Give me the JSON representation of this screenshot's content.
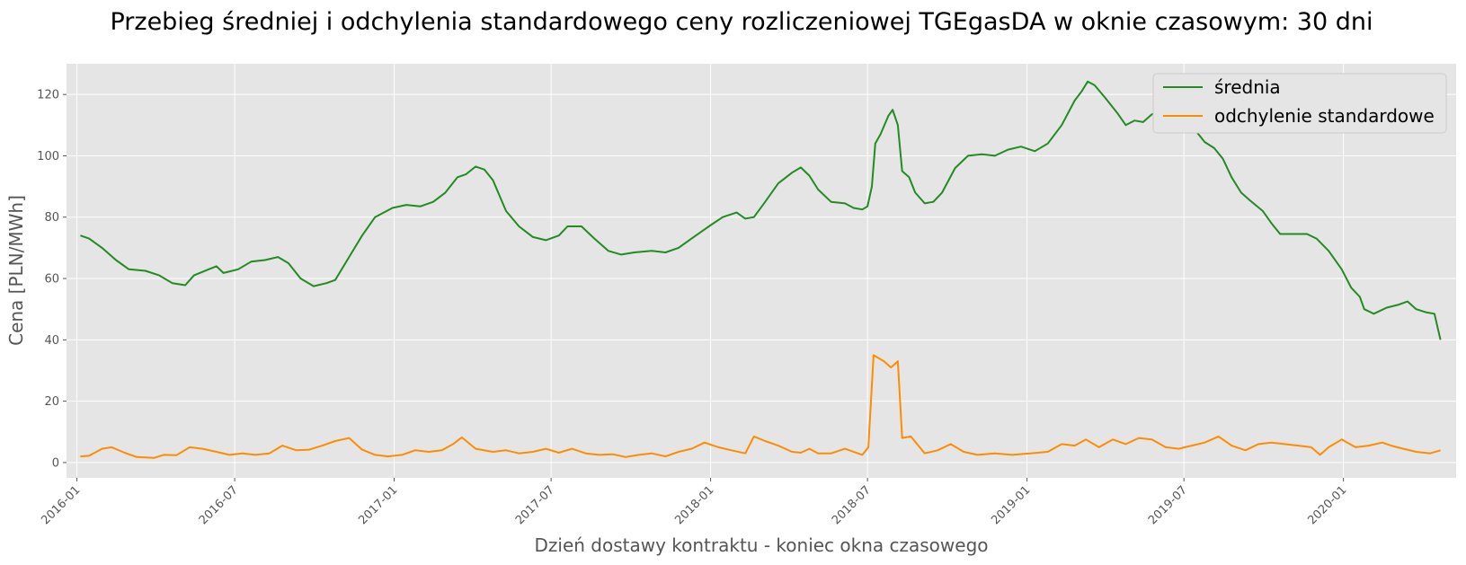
{
  "chart_data": {
    "type": "line",
    "title": "Przebieg średniej i odchylenia standardowego ceny rozliczeniowej TGEgasDA w oknie czasowym: 30 dni",
    "xlabel": "Dzień dostawy kontraktu - koniec okna czasowego",
    "ylabel": "Cena [PLN/MWh]",
    "xlim": [
      "2015-12-20",
      "2020-05-10"
    ],
    "ylim": [
      -5,
      130
    ],
    "x_ticks": [
      "2016-01",
      "2016-07",
      "2017-01",
      "2017-07",
      "2018-01",
      "2018-07",
      "2019-01",
      "2019-07",
      "2020-01"
    ],
    "y_ticks": [
      0,
      20,
      40,
      60,
      80,
      100,
      120
    ],
    "grid": true,
    "legend": "top-right",
    "series": [
      {
        "name": "średnia",
        "color": "#228b22",
        "points": [
          [
            "2016-01-05",
            74
          ],
          [
            "2016-01-15",
            73
          ],
          [
            "2016-01-30",
            70
          ],
          [
            "2016-02-15",
            66
          ],
          [
            "2016-03-01",
            63
          ],
          [
            "2016-03-20",
            62.5
          ],
          [
            "2016-04-05",
            61
          ],
          [
            "2016-04-20",
            58.5
          ],
          [
            "2016-05-05",
            57.8
          ],
          [
            "2016-05-15",
            61
          ],
          [
            "2016-06-01",
            63
          ],
          [
            "2016-06-10",
            64
          ],
          [
            "2016-06-18",
            61.8
          ],
          [
            "2016-07-05",
            63
          ],
          [
            "2016-07-20",
            65.5
          ],
          [
            "2016-08-05",
            66
          ],
          [
            "2016-08-20",
            67
          ],
          [
            "2016-09-01",
            65
          ],
          [
            "2016-09-15",
            60
          ],
          [
            "2016-09-30",
            57.5
          ],
          [
            "2016-10-15",
            58.5
          ],
          [
            "2016-10-25",
            59.5
          ],
          [
            "2016-11-10",
            67
          ],
          [
            "2016-11-25",
            74
          ],
          [
            "2016-12-10",
            80
          ],
          [
            "2016-12-30",
            83
          ],
          [
            "2017-01-15",
            84
          ],
          [
            "2017-01-31",
            83.5
          ],
          [
            "2017-02-15",
            85
          ],
          [
            "2017-03-01",
            88
          ],
          [
            "2017-03-15",
            93
          ],
          [
            "2017-03-25",
            94
          ],
          [
            "2017-04-05",
            96.5
          ],
          [
            "2017-04-15",
            95.5
          ],
          [
            "2017-04-25",
            92
          ],
          [
            "2017-05-10",
            82
          ],
          [
            "2017-05-25",
            77
          ],
          [
            "2017-06-10",
            73.5
          ],
          [
            "2017-06-25",
            72.5
          ],
          [
            "2017-07-10",
            74
          ],
          [
            "2017-07-20",
            77
          ],
          [
            "2017-08-05",
            77
          ],
          [
            "2017-08-20",
            73
          ],
          [
            "2017-09-05",
            69
          ],
          [
            "2017-09-20",
            67.8
          ],
          [
            "2017-10-05",
            68.5
          ],
          [
            "2017-10-25",
            69
          ],
          [
            "2017-11-10",
            68.5
          ],
          [
            "2017-11-25",
            70
          ],
          [
            "2017-12-10",
            73
          ],
          [
            "2017-12-30",
            77
          ],
          [
            "2018-01-15",
            80
          ],
          [
            "2018-01-31",
            81.5
          ],
          [
            "2018-02-10",
            79.5
          ],
          [
            "2018-02-20",
            80
          ],
          [
            "2018-03-05",
            85
          ],
          [
            "2018-03-20",
            91
          ],
          [
            "2018-04-05",
            94.5
          ],
          [
            "2018-04-15",
            96.2
          ],
          [
            "2018-04-25",
            93.5
          ],
          [
            "2018-05-05",
            89
          ],
          [
            "2018-05-20",
            85
          ],
          [
            "2018-06-05",
            84.5
          ],
          [
            "2018-06-15",
            83
          ],
          [
            "2018-06-25",
            82.5
          ],
          [
            "2018-07-01",
            83.5
          ],
          [
            "2018-07-06",
            90
          ],
          [
            "2018-07-10",
            104
          ],
          [
            "2018-07-16",
            107
          ],
          [
            "2018-07-25",
            113
          ],
          [
            "2018-07-30",
            115
          ],
          [
            "2018-08-05",
            110
          ],
          [
            "2018-08-10",
            95
          ],
          [
            "2018-08-18",
            93
          ],
          [
            "2018-08-25",
            88
          ],
          [
            "2018-09-05",
            84.5
          ],
          [
            "2018-09-15",
            85
          ],
          [
            "2018-09-25",
            88
          ],
          [
            "2018-10-10",
            96
          ],
          [
            "2018-10-25",
            100
          ],
          [
            "2018-11-10",
            100.5
          ],
          [
            "2018-11-25",
            100
          ],
          [
            "2018-12-10",
            102
          ],
          [
            "2018-12-25",
            103
          ],
          [
            "2019-01-10",
            101.5
          ],
          [
            "2019-01-25",
            104
          ],
          [
            "2019-02-10",
            110
          ],
          [
            "2019-02-25",
            118
          ],
          [
            "2019-03-05",
            121
          ],
          [
            "2019-03-12",
            124.2
          ],
          [
            "2019-03-20",
            123
          ],
          [
            "2019-04-01",
            119
          ],
          [
            "2019-04-15",
            114
          ],
          [
            "2019-04-25",
            110
          ],
          [
            "2019-05-05",
            111.5
          ],
          [
            "2019-05-15",
            111
          ],
          [
            "2019-05-25",
            113.5
          ],
          [
            "2019-06-05",
            114.5
          ],
          [
            "2019-06-15",
            113.5
          ],
          [
            "2019-06-25",
            112
          ],
          [
            "2019-07-05",
            109
          ],
          [
            "2019-07-15",
            108
          ],
          [
            "2019-07-25",
            104.5
          ],
          [
            "2019-08-05",
            102.5
          ],
          [
            "2019-08-15",
            99
          ],
          [
            "2019-08-25",
            93
          ],
          [
            "2019-09-05",
            88
          ],
          [
            "2019-09-15",
            85.5
          ],
          [
            "2019-09-30",
            82
          ],
          [
            "2019-10-10",
            78
          ],
          [
            "2019-10-20",
            74.5
          ],
          [
            "2019-11-05",
            74.5
          ],
          [
            "2019-11-20",
            74.5
          ],
          [
            "2019-12-01",
            73
          ],
          [
            "2019-12-15",
            69
          ],
          [
            "2019-12-30",
            63
          ],
          [
            "2020-01-10",
            57
          ],
          [
            "2020-01-20",
            54
          ],
          [
            "2020-01-25",
            50
          ],
          [
            "2020-02-05",
            48.5
          ],
          [
            "2020-02-20",
            50.5
          ],
          [
            "2020-03-05",
            51.5
          ],
          [
            "2020-03-15",
            52.5
          ],
          [
            "2020-03-25",
            50
          ],
          [
            "2020-04-05",
            49
          ],
          [
            "2020-04-15",
            48.5
          ],
          [
            "2020-04-22",
            40
          ]
        ]
      },
      {
        "name": "odchylenie standardowe",
        "color": "#ff8c00",
        "points": [
          [
            "2016-01-05",
            2
          ],
          [
            "2016-01-15",
            2.2
          ],
          [
            "2016-01-30",
            4.5
          ],
          [
            "2016-02-10",
            5
          ],
          [
            "2016-02-25",
            3.2
          ],
          [
            "2016-03-10",
            1.8
          ],
          [
            "2016-03-30",
            1.5
          ],
          [
            "2016-04-10",
            2.5
          ],
          [
            "2016-04-25",
            2.4
          ],
          [
            "2016-05-10",
            5
          ],
          [
            "2016-05-25",
            4.5
          ],
          [
            "2016-06-10",
            3.5
          ],
          [
            "2016-06-25",
            2.5
          ],
          [
            "2016-07-10",
            3
          ],
          [
            "2016-07-25",
            2.5
          ],
          [
            "2016-08-10",
            3
          ],
          [
            "2016-08-25",
            5.5
          ],
          [
            "2016-09-10",
            4
          ],
          [
            "2016-09-25",
            4.2
          ],
          [
            "2016-10-10",
            5.5
          ],
          [
            "2016-10-25",
            7
          ],
          [
            "2016-11-10",
            8
          ],
          [
            "2016-11-25",
            4.2
          ],
          [
            "2016-12-10",
            2.5
          ],
          [
            "2016-12-25",
            2
          ],
          [
            "2017-01-10",
            2.5
          ],
          [
            "2017-01-25",
            4
          ],
          [
            "2017-02-10",
            3.5
          ],
          [
            "2017-02-25",
            4
          ],
          [
            "2017-03-10",
            6
          ],
          [
            "2017-03-20",
            8.2
          ],
          [
            "2017-04-05",
            4.5
          ],
          [
            "2017-04-25",
            3.5
          ],
          [
            "2017-05-10",
            4
          ],
          [
            "2017-05-25",
            3
          ],
          [
            "2017-06-10",
            3.5
          ],
          [
            "2017-06-25",
            4.5
          ],
          [
            "2017-07-10",
            3.2
          ],
          [
            "2017-07-25",
            4.5
          ],
          [
            "2017-08-10",
            3
          ],
          [
            "2017-08-25",
            2.5
          ],
          [
            "2017-09-10",
            2.7
          ],
          [
            "2017-09-25",
            1.8
          ],
          [
            "2017-10-10",
            2.5
          ],
          [
            "2017-10-25",
            3
          ],
          [
            "2017-11-10",
            2
          ],
          [
            "2017-11-25",
            3.5
          ],
          [
            "2017-12-10",
            4.5
          ],
          [
            "2017-12-25",
            6.5
          ],
          [
            "2018-01-10",
            5
          ],
          [
            "2018-01-25",
            4
          ],
          [
            "2018-02-10",
            3
          ],
          [
            "2018-02-20",
            8.5
          ],
          [
            "2018-03-05",
            7
          ],
          [
            "2018-03-20",
            5.5
          ],
          [
            "2018-04-05",
            3.5
          ],
          [
            "2018-04-15",
            3.2
          ],
          [
            "2018-04-25",
            4.5
          ],
          [
            "2018-05-05",
            3
          ],
          [
            "2018-05-20",
            3
          ],
          [
            "2018-06-05",
            4.5
          ],
          [
            "2018-06-25",
            2.5
          ],
          [
            "2018-07-02",
            5
          ],
          [
            "2018-07-08",
            35
          ],
          [
            "2018-07-20",
            33
          ],
          [
            "2018-07-28",
            31
          ],
          [
            "2018-08-05",
            33
          ],
          [
            "2018-08-10",
            8
          ],
          [
            "2018-08-20",
            8.5
          ],
          [
            "2018-09-05",
            3
          ],
          [
            "2018-09-20",
            4
          ],
          [
            "2018-10-05",
            6
          ],
          [
            "2018-10-20",
            3.5
          ],
          [
            "2018-11-05",
            2.5
          ],
          [
            "2018-11-25",
            3
          ],
          [
            "2018-12-15",
            2.5
          ],
          [
            "2019-01-05",
            3
          ],
          [
            "2019-01-25",
            3.5
          ],
          [
            "2019-02-10",
            6
          ],
          [
            "2019-02-25",
            5.5
          ],
          [
            "2019-03-10",
            7.5
          ],
          [
            "2019-03-25",
            5
          ],
          [
            "2019-04-10",
            7.5
          ],
          [
            "2019-04-25",
            6
          ],
          [
            "2019-05-10",
            8
          ],
          [
            "2019-05-25",
            7.5
          ],
          [
            "2019-06-10",
            5
          ],
          [
            "2019-06-25",
            4.5
          ],
          [
            "2019-07-10",
            5.5
          ],
          [
            "2019-07-25",
            6.5
          ],
          [
            "2019-08-10",
            8.5
          ],
          [
            "2019-08-25",
            5.5
          ],
          [
            "2019-09-10",
            4
          ],
          [
            "2019-09-25",
            6
          ],
          [
            "2019-10-10",
            6.5
          ],
          [
            "2019-10-25",
            6
          ],
          [
            "2019-11-10",
            5.5
          ],
          [
            "2019-11-25",
            5
          ],
          [
            "2019-12-05",
            2.5
          ],
          [
            "2019-12-15",
            5
          ],
          [
            "2019-12-30",
            7.5
          ],
          [
            "2020-01-15",
            5
          ],
          [
            "2020-01-30",
            5.5
          ],
          [
            "2020-02-15",
            6.5
          ],
          [
            "2020-02-25",
            5.5
          ],
          [
            "2020-03-10",
            4.5
          ],
          [
            "2020-03-25",
            3.5
          ],
          [
            "2020-04-10",
            3
          ],
          [
            "2020-04-22",
            4
          ]
        ]
      }
    ]
  }
}
